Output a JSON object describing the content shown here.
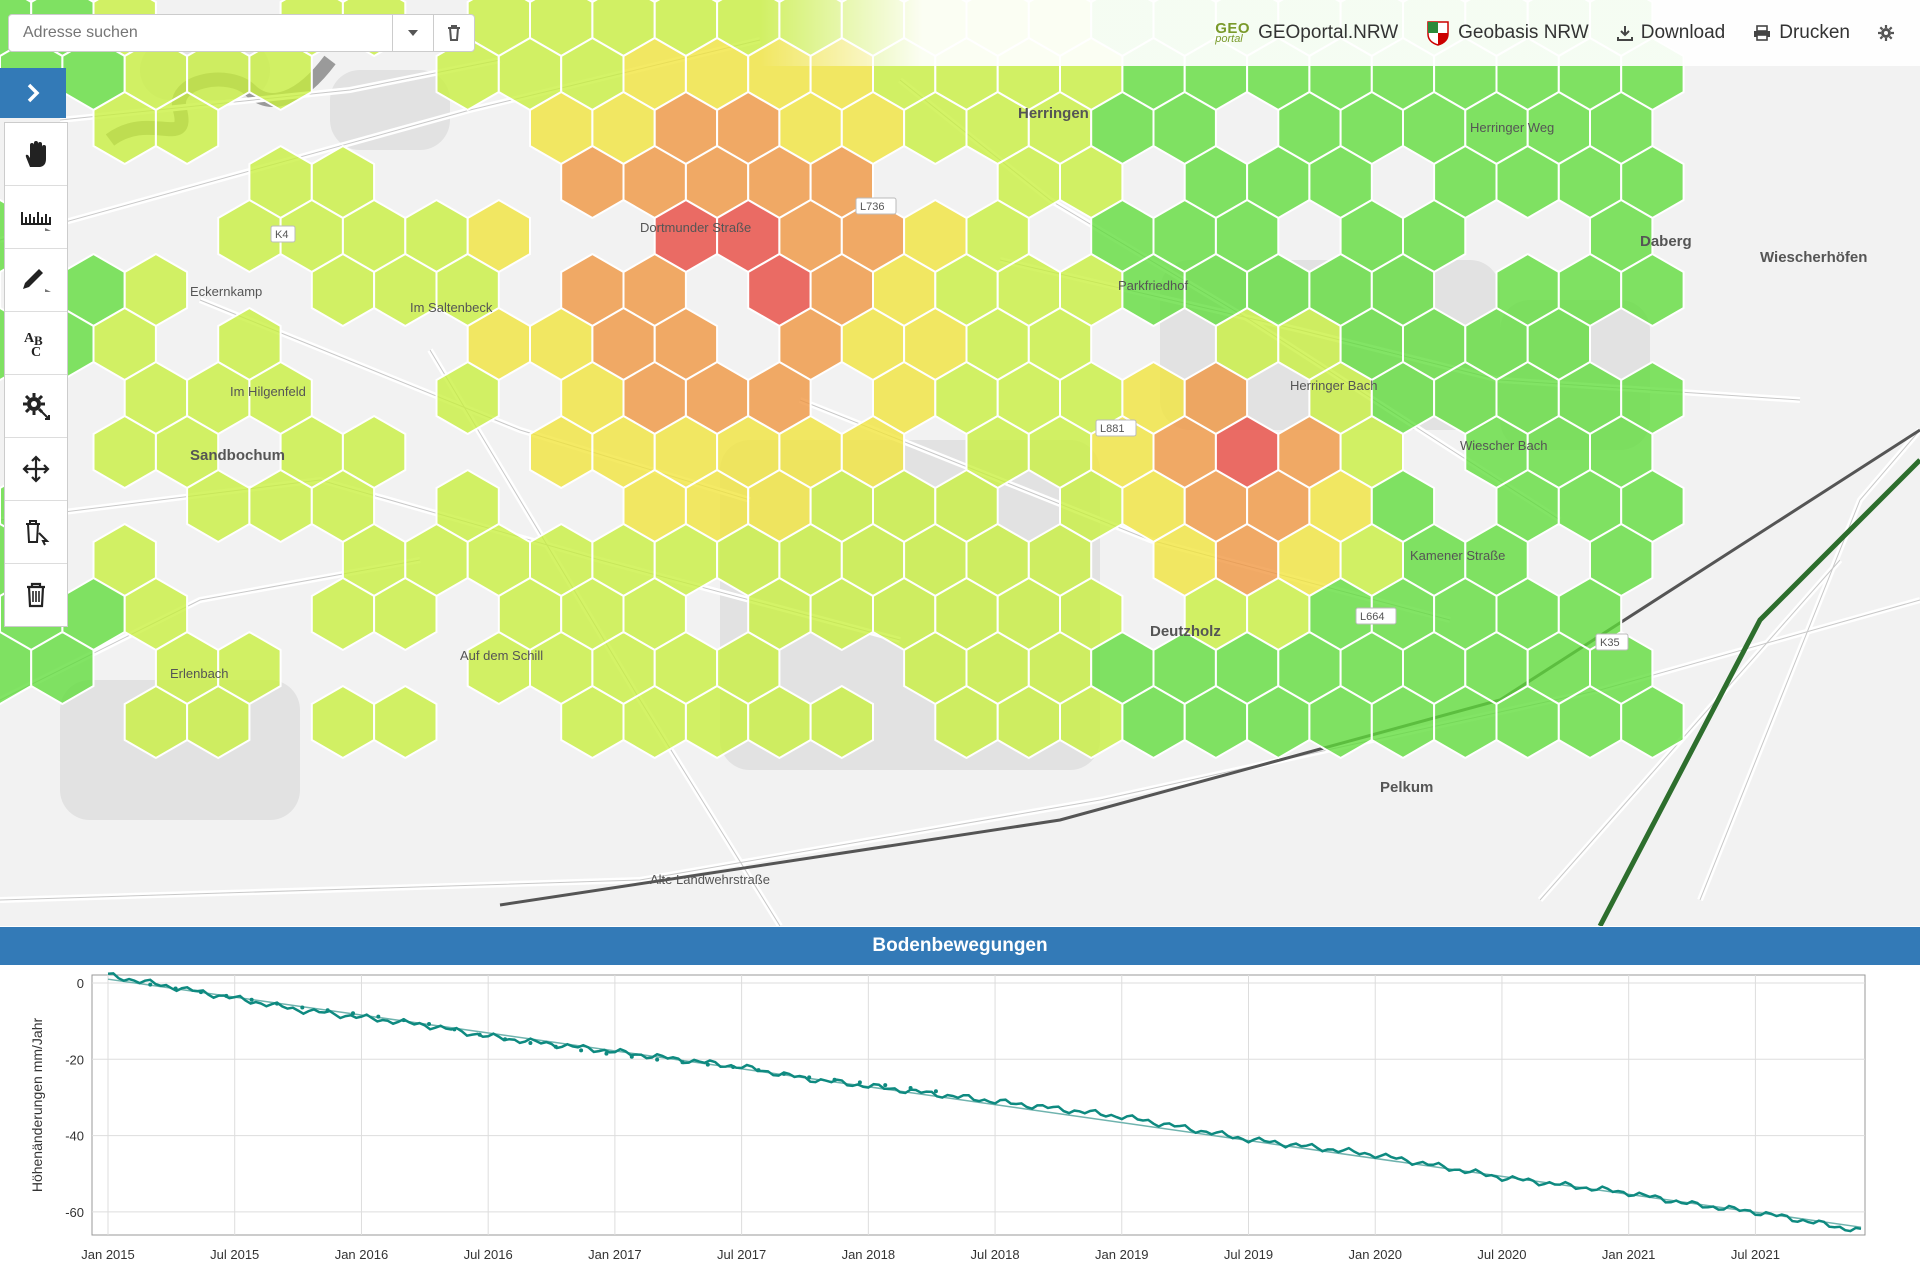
{
  "search": {
    "placeholder": "Adresse suchen"
  },
  "topbar": {
    "logo_text": "GEO portal",
    "geoportal": "GEOportal.NRW",
    "geobasis": "Geobasis NRW",
    "download": "Download",
    "print": "Drucken"
  },
  "toolbar": {
    "expand_icon": "chevron-right-icon",
    "tools": [
      "hand-pan-icon",
      "ruler-measure-icon",
      "pencil-draw-icon",
      "abc-label-icon",
      "gear-settings-icon",
      "move-icon",
      "delete-selection-icon",
      "trash-icon"
    ]
  },
  "map": {
    "labels": [
      "Herringen",
      "Dortmunder Straße",
      "Eckernkamp",
      "Im Saltenbeck",
      "Im Hilgenfeld",
      "Sandbochum",
      "Parkfriedhof",
      "Herringer Bach",
      "Herringer Weg",
      "Daberg",
      "Wiescherhöfen",
      "Deutzholz",
      "Pelkum",
      "Auf dem Schill",
      "Erlenbach",
      "Alte Landwehrstraße",
      "Kamener Straße",
      "Wiescher Bach"
    ],
    "roads": [
      "K4",
      "L736",
      "L881",
      "L664",
      "K35"
    ],
    "colors": {
      "red": "#e8453c",
      "orange": "#f0953d",
      "yellow": "#f1e43a",
      "lime": "#c8f03c",
      "green": "#5fdc3a"
    }
  },
  "chart_panel": {
    "title": "Bodenbewegungen"
  },
  "chart_data": {
    "type": "line",
    "title": "Bodenbewegungen",
    "ylabel": "Höhenänderungen mm/Jahr",
    "xlabel": "",
    "ylim": [
      -65,
      0
    ],
    "yticks": [
      0,
      -20,
      -40,
      -60
    ],
    "xticks": [
      "Jan 2015",
      "Jul 2015",
      "Jan 2016",
      "Jul 2016",
      "Jan 2017",
      "Jul 2017",
      "Jan 2018",
      "Jul 2018",
      "Jan 2019",
      "Jul 2019",
      "Jan 2020",
      "Jul 2020",
      "Jan 2021",
      "Jul 2021"
    ],
    "series": [
      {
        "values_date": [
          "2015-01",
          "2015-04",
          "2015-07",
          "2015-10",
          "2016-01",
          "2016-04",
          "2016-07",
          "2016-10",
          "2017-01",
          "2017-04",
          "2017-07",
          "2017-10",
          "2018-01",
          "2018-04",
          "2018-07",
          "2018-10",
          "2019-01",
          "2019-04",
          "2019-07",
          "2019-10",
          "2020-01",
          "2020-04",
          "2020-07",
          "2020-10",
          "2021-01",
          "2021-04",
          "2021-07",
          "2021-10",
          "2021-12"
        ],
        "values": [
          2,
          -1,
          -4,
          -7,
          -9,
          -11,
          -14,
          -16,
          -18,
          -20,
          -22,
          -25,
          -27,
          -29,
          -31,
          -33,
          -35,
          -38,
          -41,
          -43,
          -45,
          -48,
          -51,
          -53,
          -55,
          -58,
          -60,
          -63,
          -65
        ]
      },
      {
        "values_date": [
          "2015-01",
          "2021-12"
        ],
        "values": [
          1,
          -64
        ]
      }
    ],
    "colors": {
      "data": "#0e8a80",
      "trend": "#6fb3ae"
    }
  }
}
